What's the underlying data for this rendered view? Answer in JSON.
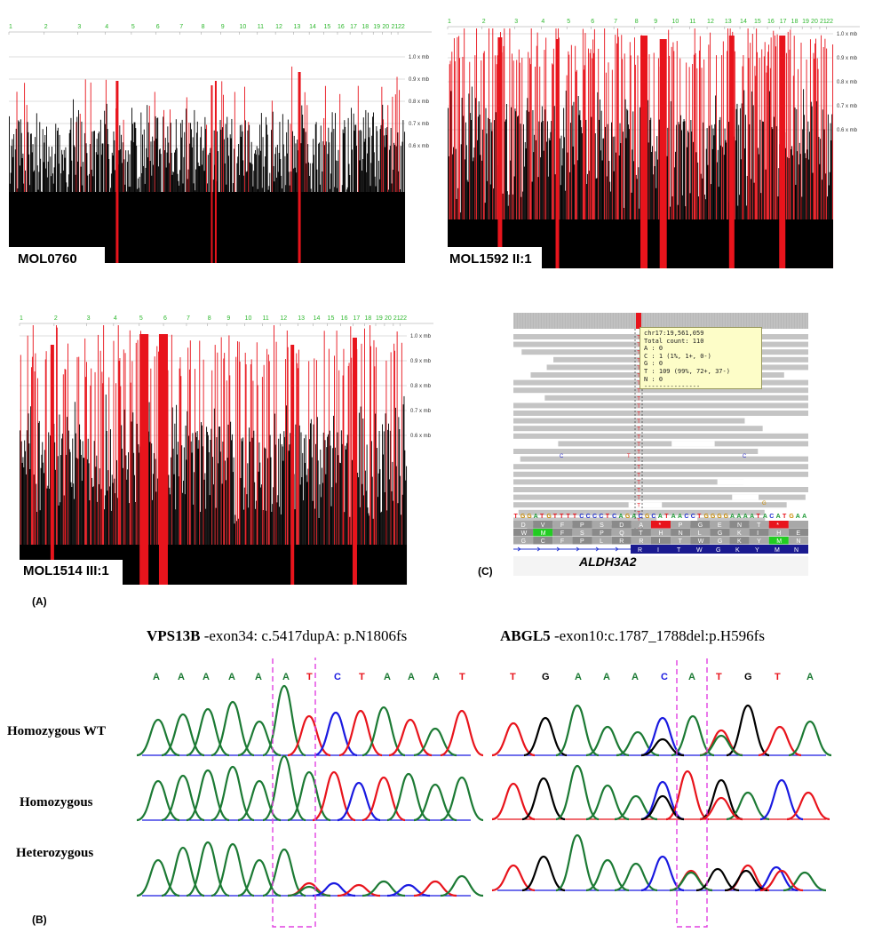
{
  "panel_labels": {
    "a": "(A)",
    "b": "(B)",
    "c": "(C)"
  },
  "chromosomes": [
    "1",
    "2",
    "3",
    "4",
    "5",
    "6",
    "7",
    "8",
    "9",
    "10",
    "11",
    "12",
    "13",
    "14",
    "15",
    "16",
    "17",
    "18",
    "19",
    "20",
    "21",
    "22"
  ],
  "axis_ticks": [
    "1.0 x mb",
    "0.9 x mb",
    "0.8 x mb",
    "0.7 x mb",
    "0.6 x mb"
  ],
  "plots": [
    {
      "id": "plot1",
      "sample": "MOL0760"
    },
    {
      "id": "plot2",
      "sample": "MOL1592 II:1"
    },
    {
      "id": "plot3",
      "sample": "MOL1514 III:1"
    }
  ],
  "igv": {
    "position": "chr17:19,561,059",
    "tooltip_lines": [
      "chr17:19,561,059",
      "Total count: 110",
      "A : 0",
      "C : 1 (1%, 1+, 0-)",
      "G : 0",
      "T : 109 (99%, 72+, 37-)",
      "N : 0",
      "---------------"
    ],
    "reference_seq": "TGGATGTTTTCCCCTCAGACGCATAACCTGGGGAAAATACATGAA",
    "aa_row1": "D V F P S D A * P G E N T * ",
    "aa_row2": "W M F S P Q T H N L G K I H E",
    "aa_row3": "G C F P L R R I T W G K Y M N",
    "gene": "ALDH3A2",
    "stray_bases": [
      "C",
      "T",
      "C",
      "G"
    ]
  },
  "sequencing": {
    "left": {
      "gene": "VPS13B",
      "detail": " -exon34: c.5417dupA: p.N1806fs",
      "bases": [
        "A",
        "A",
        "A",
        "A",
        "A",
        "A",
        "T",
        "C",
        "T",
        "A",
        "A",
        "A",
        "T"
      ]
    },
    "right": {
      "gene": "ABGL5",
      "detail": " -exon10:c.1787_1788del:p.H596fs",
      "bases": [
        "T",
        "G",
        "A",
        "A",
        "A",
        "C",
        "A",
        "T",
        "G",
        "T",
        "A"
      ]
    },
    "rows": [
      "Homozygous WT",
      "Homozygous",
      "Heterozygous"
    ]
  },
  "colors": {
    "red": "#e8141c",
    "black": "#000000",
    "green": "#1c7a34",
    "blue": "#1a1ae0",
    "magenta": "#e040e0"
  }
}
